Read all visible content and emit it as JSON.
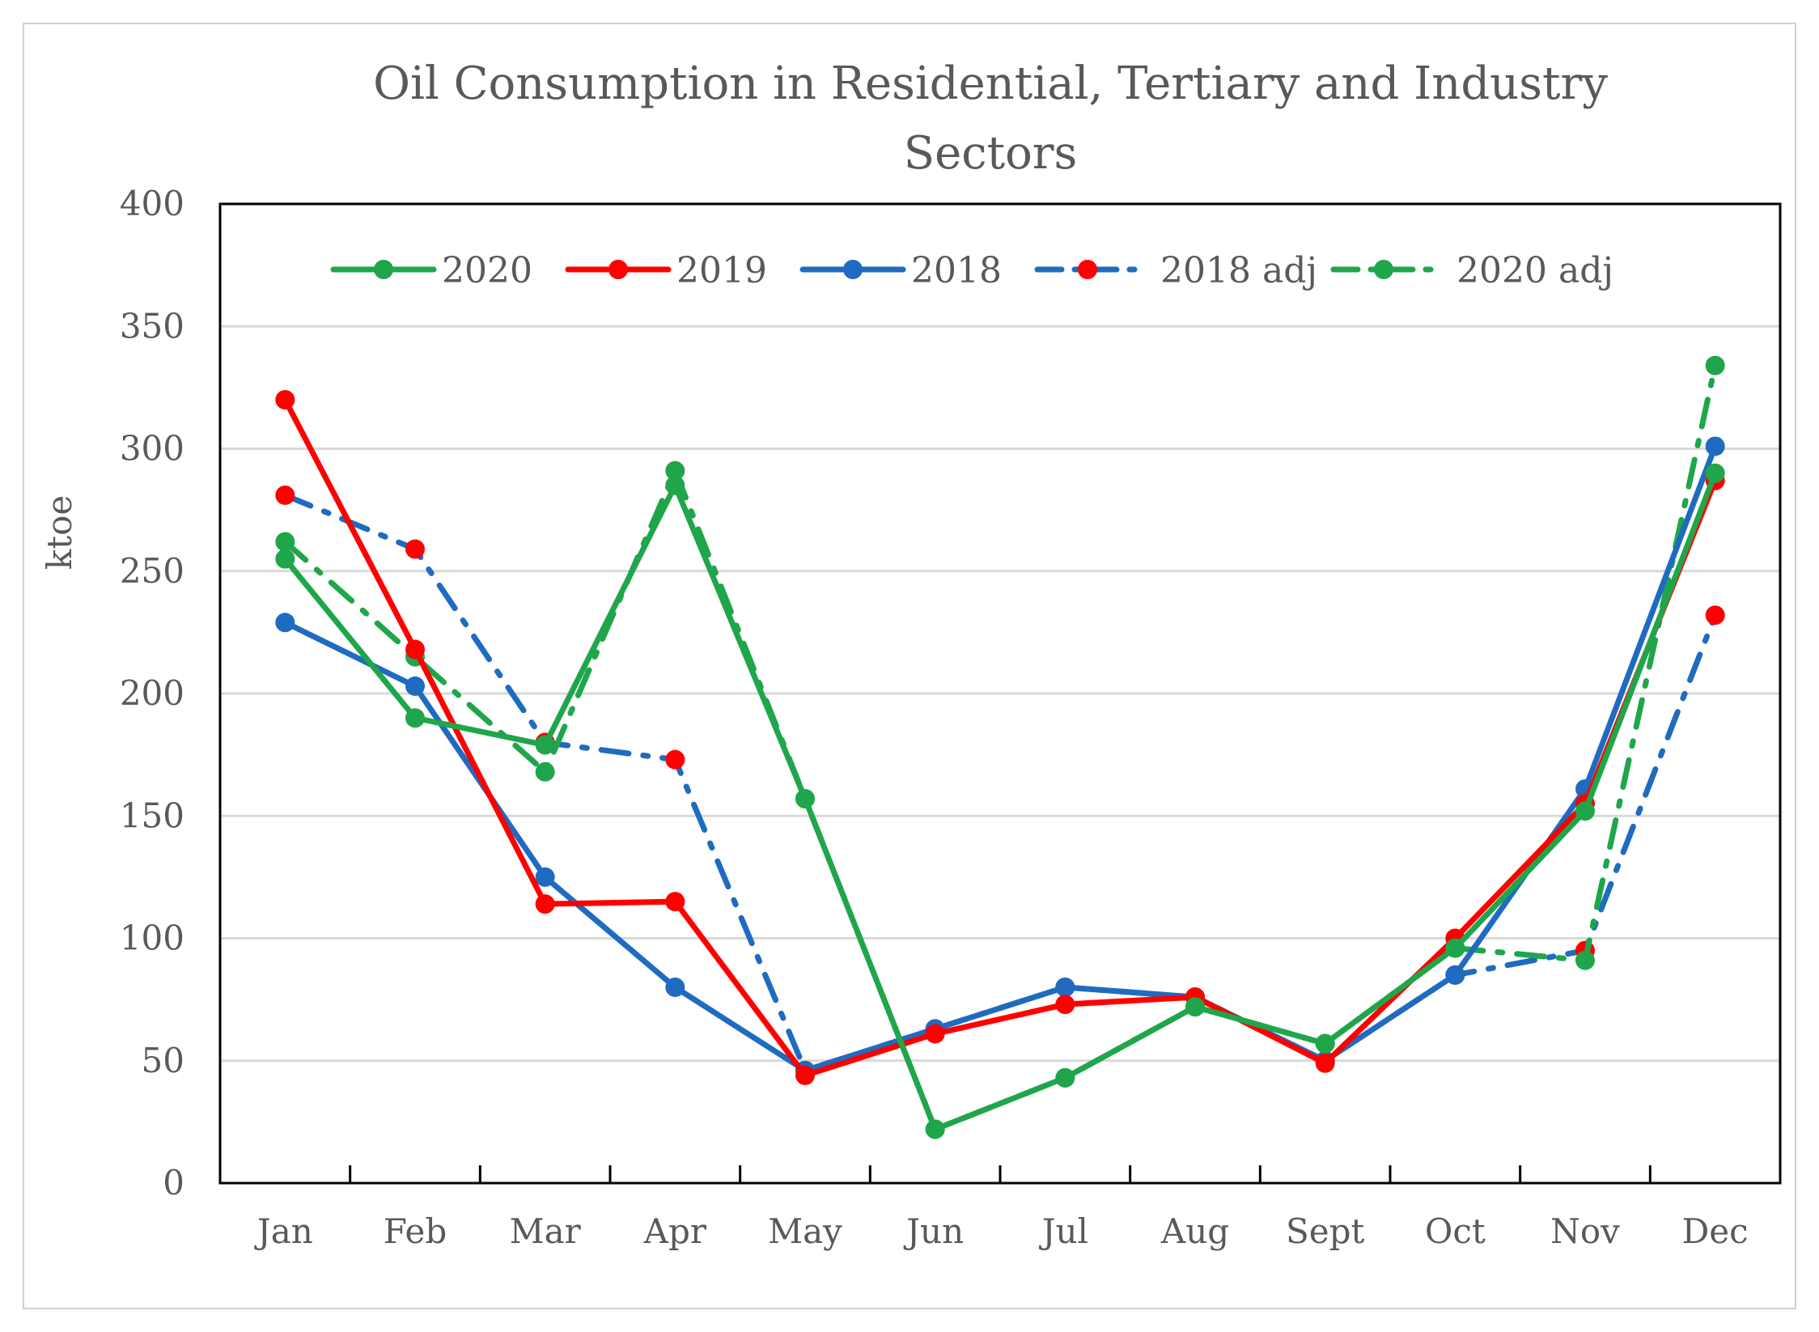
{
  "chart_data": {
    "type": "line",
    "title_lines": [
      "Oil Consumption in Residential, Tertiary and Industry",
      "Sectors"
    ],
    "xlabel": "",
    "ylabel": "ktoe",
    "ylim": [
      0,
      400
    ],
    "yticks": [
      0,
      50,
      100,
      150,
      200,
      250,
      300,
      350,
      400
    ],
    "categories": [
      "Jan",
      "Feb",
      "Mar",
      "Apr",
      "May",
      "Jun",
      "Jul",
      "Aug",
      "Sept",
      "Oct",
      "Nov",
      "Dec"
    ],
    "grid": true,
    "legend_position": "top",
    "series": [
      {
        "name": "2018 adj",
        "style": "dashdot",
        "line_color": "#1f6bc1",
        "marker_color": "#ff0000",
        "values": [
          281,
          259,
          180,
          173,
          46,
          63,
          80,
          76,
          50,
          85,
          95,
          232
        ]
      },
      {
        "name": "2020 adj",
        "style": "dashdot",
        "line_color": "#1fa64a",
        "marker_color": "#1fa64a",
        "values": [
          262,
          215,
          168,
          291,
          157,
          22,
          43,
          72,
          57,
          96,
          91,
          334
        ]
      },
      {
        "name": "2018",
        "style": "solid",
        "line_color": "#1f6bc1",
        "marker_color": "#1f6bc1",
        "values": [
          229,
          203,
          125,
          80,
          46,
          63,
          80,
          76,
          50,
          85,
          161,
          301
        ]
      },
      {
        "name": "2019",
        "style": "solid",
        "line_color": "#ff0000",
        "marker_color": "#ff0000",
        "values": [
          320,
          218,
          114,
          115,
          44,
          61,
          73,
          76,
          49,
          100,
          155,
          287
        ]
      },
      {
        "name": "2020",
        "style": "solid",
        "line_color": "#1fa64a",
        "marker_color": "#1fa64a",
        "values": [
          255,
          190,
          179,
          285,
          157,
          22,
          43,
          72,
          57,
          96,
          152,
          290
        ]
      }
    ],
    "legend_order": [
      "2020",
      "2019",
      "2018",
      "2018 adj",
      "2020 adj"
    ]
  }
}
